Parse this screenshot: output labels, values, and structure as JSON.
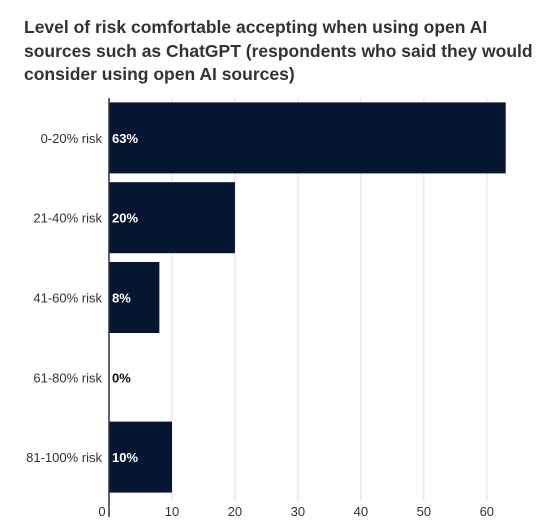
{
  "chart_data": {
    "type": "bar",
    "orientation": "horizontal",
    "title_lines": [
      "Level of risk comfortable accepting when using open AI",
      "sources such as ChatGPT (respondents who said they would",
      "consider using open AI sources)"
    ],
    "categories": [
      "0-20% risk",
      "21-40% risk",
      "41-60% risk",
      "61-80% risk",
      "81-100% risk"
    ],
    "values": [
      63,
      20,
      8,
      0,
      10
    ],
    "data_labels": [
      "63%",
      "20%",
      "8%",
      "0%",
      "10%"
    ],
    "xlim": [
      0,
      64
    ],
    "xticks": [
      0,
      10,
      20,
      30,
      40,
      50,
      60
    ],
    "grid": true,
    "legend": "none",
    "colors": {
      "bar": "#051631",
      "grid": "#dddddd",
      "axis": "#333333",
      "label_inside": "#ffffff",
      "label_outside": "#111111",
      "title": "#333333"
    }
  }
}
